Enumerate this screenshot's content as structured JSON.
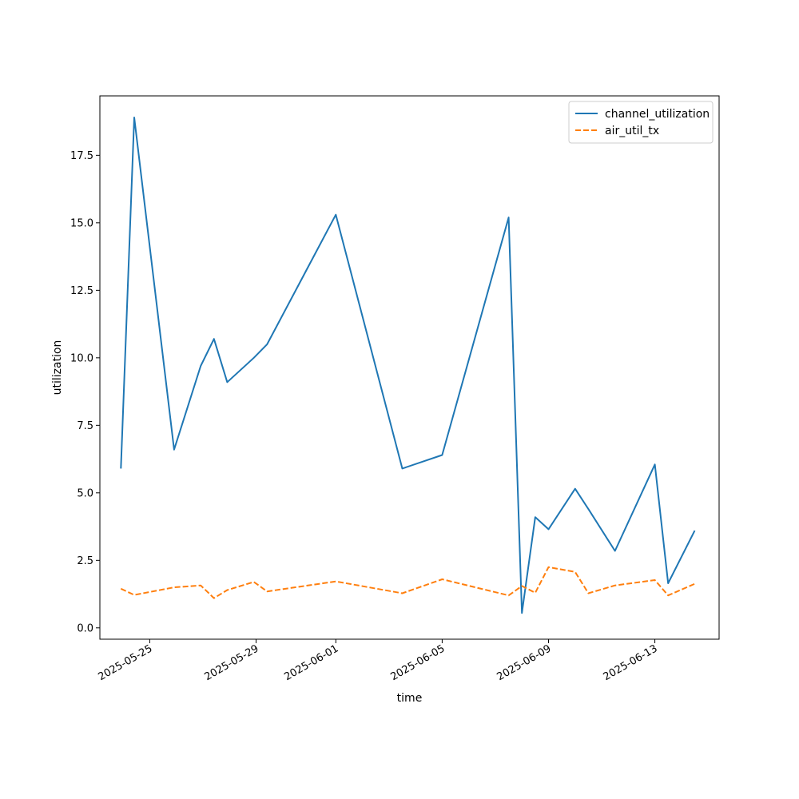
{
  "chart_data": {
    "type": "line",
    "title": "",
    "xlabel": "time",
    "ylabel": "utilization",
    "ylim": [
      -0.42,
      19.7
    ],
    "xlim": [
      "2025-05-23T03:00",
      "2025-06-15T10:00"
    ],
    "grid": false,
    "legend_position": "top-right",
    "y_ticks": [
      0.0,
      2.5,
      5.0,
      7.5,
      10.0,
      12.5,
      15.0,
      17.5
    ],
    "y_tick_labels": [
      "0.0",
      "2.5",
      "5.0",
      "7.5",
      "10.0",
      "12.5",
      "15.0",
      "17.5"
    ],
    "x_ticks": [
      "2025-05-25",
      "2025-05-29",
      "2025-06-01",
      "2025-06-05",
      "2025-06-09",
      "2025-06-13"
    ],
    "x_tick_labels": [
      "2025-05-25",
      "2025-05-29",
      "2025-06-01",
      "2025-06-05",
      "2025-06-09",
      "2025-06-13"
    ],
    "series": [
      {
        "name": "channel_utilization",
        "color": "#1f77b4",
        "dash": "solid",
        "points": [
          {
            "x": "2025-05-23T22:00",
            "y": 5.9
          },
          {
            "x": "2025-05-24T10:00",
            "y": 18.9
          },
          {
            "x": "2025-05-25T22:00",
            "y": 6.6
          },
          {
            "x": "2025-05-26T22:00",
            "y": 9.7
          },
          {
            "x": "2025-05-27T10:00",
            "y": 10.7
          },
          {
            "x": "2025-05-27T22:00",
            "y": 9.1
          },
          {
            "x": "2025-05-28T22:00",
            "y": 10.0
          },
          {
            "x": "2025-05-29T10:00",
            "y": 10.5
          },
          {
            "x": "2025-06-01T00:00",
            "y": 15.3
          },
          {
            "x": "2025-06-03T12:00",
            "y": 5.9
          },
          {
            "x": "2025-06-05T00:00",
            "y": 6.4
          },
          {
            "x": "2025-06-07T12:00",
            "y": 15.2
          },
          {
            "x": "2025-06-08T00:00",
            "y": 0.55
          },
          {
            "x": "2025-06-08T12:00",
            "y": 4.1
          },
          {
            "x": "2025-06-09T00:00",
            "y": 3.65
          },
          {
            "x": "2025-06-10T00:00",
            "y": 5.15
          },
          {
            "x": "2025-06-10T12:00",
            "y": 4.4
          },
          {
            "x": "2025-06-11T12:00",
            "y": 2.85
          },
          {
            "x": "2025-06-13T00:00",
            "y": 6.05
          },
          {
            "x": "2025-06-13T12:00",
            "y": 1.65
          },
          {
            "x": "2025-06-14T12:00",
            "y": 3.6
          }
        ]
      },
      {
        "name": "air_util_tx",
        "color": "#ff7f0e",
        "dash": "dashed",
        "points": [
          {
            "x": "2025-05-23T22:00",
            "y": 1.45
          },
          {
            "x": "2025-05-24T10:00",
            "y": 1.22
          },
          {
            "x": "2025-05-25T22:00",
            "y": 1.5
          },
          {
            "x": "2025-05-26T22:00",
            "y": 1.57
          },
          {
            "x": "2025-05-27T10:00",
            "y": 1.1
          },
          {
            "x": "2025-05-27T22:00",
            "y": 1.4
          },
          {
            "x": "2025-05-28T22:00",
            "y": 1.7
          },
          {
            "x": "2025-05-29T10:00",
            "y": 1.35
          },
          {
            "x": "2025-06-01T00:00",
            "y": 1.72
          },
          {
            "x": "2025-06-03T12:00",
            "y": 1.28
          },
          {
            "x": "2025-06-05T00:00",
            "y": 1.8
          },
          {
            "x": "2025-06-07T12:00",
            "y": 1.2
          },
          {
            "x": "2025-06-08T00:00",
            "y": 1.55
          },
          {
            "x": "2025-06-08T12:00",
            "y": 1.3
          },
          {
            "x": "2025-06-09T00:00",
            "y": 2.25
          },
          {
            "x": "2025-06-10T00:00",
            "y": 2.07
          },
          {
            "x": "2025-06-10T12:00",
            "y": 1.28
          },
          {
            "x": "2025-06-11T12:00",
            "y": 1.57
          },
          {
            "x": "2025-06-13T00:00",
            "y": 1.77
          },
          {
            "x": "2025-06-13T12:00",
            "y": 1.2
          },
          {
            "x": "2025-06-14T12:00",
            "y": 1.63
          }
        ]
      }
    ]
  }
}
